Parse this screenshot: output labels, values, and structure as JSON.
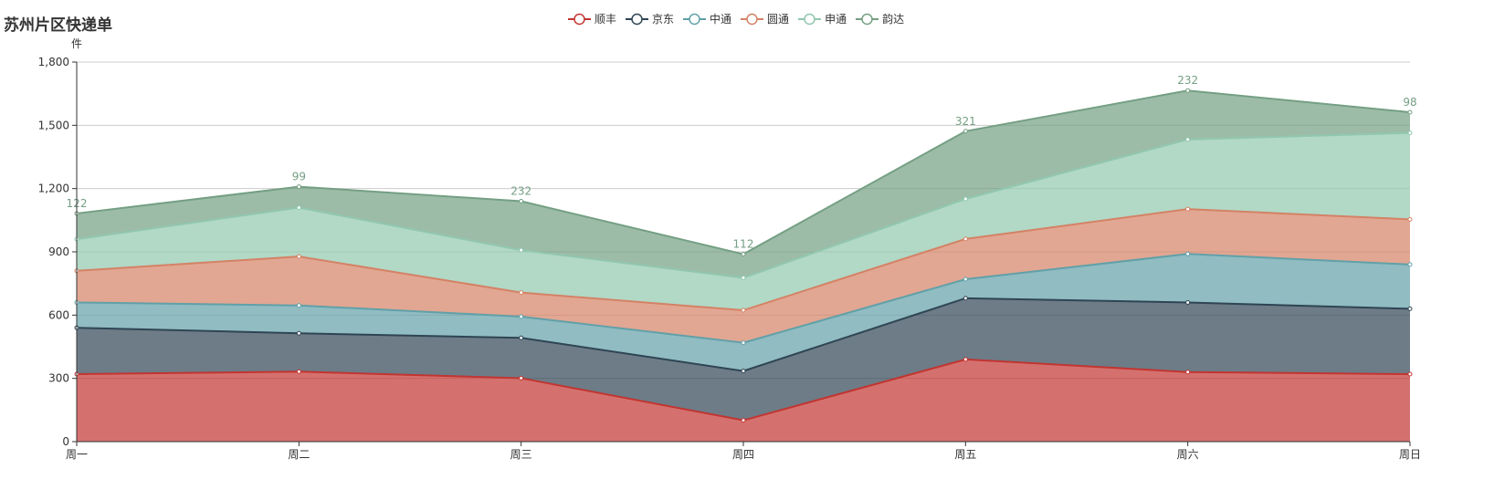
{
  "chart_data": {
    "type": "area",
    "stacked": true,
    "title": "苏州片区快递单",
    "ylabel": "件",
    "xlabel": "",
    "categories": [
      "周一",
      "周二",
      "周三",
      "周四",
      "周五",
      "周六",
      "周日"
    ],
    "ylim": [
      0,
      1800
    ],
    "yticks": [
      0,
      300,
      600,
      900,
      1200,
      1500,
      1800
    ],
    "ytick_labels": [
      "0",
      "300",
      "600",
      "900",
      "1,200",
      "1,500",
      "1,800"
    ],
    "grid": true,
    "legend_position": "top-center",
    "series": [
      {
        "name": "顺丰",
        "color": "#c23531",
        "values": [
          320,
          332,
          301,
          101,
          390,
          330,
          320
        ]
      },
      {
        "name": "京东",
        "color": "#2f4554",
        "values": [
          220,
          182,
          191,
          234,
          290,
          330,
          310
        ]
      },
      {
        "name": "中通",
        "color": "#61a0a8",
        "values": [
          120,
          132,
          101,
          134,
          90,
          230,
          210
        ]
      },
      {
        "name": "圆通",
        "color": "#d48265",
        "values": [
          150,
          232,
          114,
          154,
          191,
          213,
          214
        ]
      },
      {
        "name": "申通",
        "color": "#91c7ae",
        "values": [
          150,
          232,
          201,
          154,
          190,
          330,
          410
        ]
      },
      {
        "name": "韵达",
        "color": "#749f83",
        "values": [
          122,
          99,
          232,
          112,
          321,
          232,
          98
        ],
        "show_labels": true
      }
    ]
  }
}
